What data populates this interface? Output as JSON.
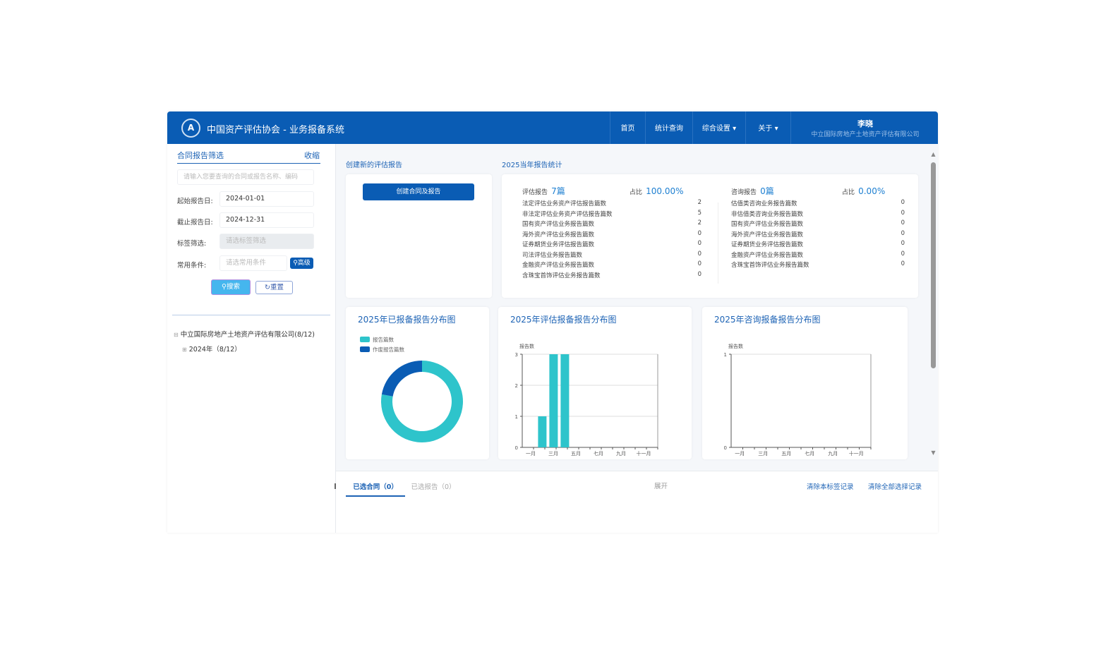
{
  "header": {
    "title": "中国资产评估协会 - 业务报备系统",
    "nav": [
      "首页",
      "统计查询",
      "综合设置 ▾",
      "关于 ▾"
    ],
    "user_name": "李晓",
    "user_company": "中立国际房地产土地资产评估有限公司"
  },
  "filter": {
    "title": "合同报告筛选",
    "collapse": "收缩",
    "search_placeholder": "请输入您要查询的合同或报告名称、编码",
    "start_label": "起始报告日:",
    "start_value": "2024-01-01",
    "end_label": "截止报告日:",
    "end_value": "2024-12-31",
    "tag_label": "标签筛选:",
    "tag_placeholder": "请选标签筛选",
    "cond_label": "常用条件:",
    "cond_placeholder": "请选常用条件",
    "advanced": "高级",
    "search": "搜索",
    "reset": "重置"
  },
  "tree": {
    "root": "中立国际房地产土地资产评估有限公司(8/12)",
    "child": "2024年（8/12）"
  },
  "create": {
    "title": "创建新的评估报告",
    "button": "创建合同及报告"
  },
  "stats": {
    "title": "2025当年报告统计",
    "eval": {
      "label": "评估报告",
      "count": "7篇",
      "ratio_label": "占比",
      "ratio": "100.00%",
      "rows": [
        [
          "法定评估业务资产评估报告篇数",
          "2"
        ],
        [
          "非法定评估业务资产评估报告篇数",
          "5"
        ],
        [
          "国有资产评估业务报告篇数",
          "2"
        ],
        [
          "海外资产评估业务报告篇数",
          "0"
        ],
        [
          "证券期货业务评估报告篇数",
          "0"
        ],
        [
          "司法评估业务报告篇数",
          "0"
        ],
        [
          "金融资产评估业务报告篇数",
          "0"
        ],
        [
          "含珠宝首饰评估业务报告篇数",
          "0"
        ]
      ]
    },
    "consult": {
      "label": "咨询报告",
      "count": "0篇",
      "ratio_label": "占比",
      "ratio": "0.00%",
      "rows": [
        [
          "估值类咨询业务报告篇数",
          "0"
        ],
        [
          "非估值类咨询业务报告篇数",
          "0"
        ],
        [
          "国有资产评估业务报告篇数",
          "0"
        ],
        [
          "海外资产评估业务报告篇数",
          "0"
        ],
        [
          "证券期货业务评估报告篇数",
          "0"
        ],
        [
          "金融资产评估业务报告篇数",
          "0"
        ],
        [
          "含珠宝首饰评估业务报告篇数",
          "0"
        ]
      ]
    }
  },
  "chart_data": [
    {
      "type": "pie",
      "title": "2025年已报备报告分布图",
      "legend": [
        "报告篇数",
        "作废报告篇数"
      ],
      "values": [
        7,
        2
      ],
      "colors": [
        "#2ec4cb",
        "#0a5cb4"
      ],
      "donut": true,
      "legend_position": "top-left"
    },
    {
      "type": "bar",
      "title": "2025年评估报备报告分布图",
      "ylabel": "报告数",
      "categories": [
        "一月",
        "二月",
        "三月",
        "四月",
        "五月",
        "六月",
        "七月",
        "八月",
        "九月",
        "十月",
        "十一月",
        "十二月"
      ],
      "tick_labels": [
        "一月",
        "三月",
        "五月",
        "七月",
        "九月",
        "十一月"
      ],
      "values": [
        0,
        1,
        3,
        3,
        0,
        0,
        0,
        0,
        0,
        0,
        0,
        0
      ],
      "ylim": [
        0,
        3
      ],
      "yticks": [
        "0",
        "1",
        "2",
        "3"
      ],
      "color": "#2ec4cb",
      "grid": true
    },
    {
      "type": "bar",
      "title": "2025年咨询报备报告分布图",
      "ylabel": "报告数",
      "categories": [
        "一月",
        "二月",
        "三月",
        "四月",
        "五月",
        "六月",
        "七月",
        "八月",
        "九月",
        "十月",
        "十一月",
        "十二月"
      ],
      "tick_labels": [
        "一月",
        "三月",
        "五月",
        "七月",
        "九月",
        "十一月"
      ],
      "values": [
        0,
        0,
        0,
        0,
        0,
        0,
        0,
        0,
        0,
        0,
        0,
        0
      ],
      "ylim": [
        0,
        1
      ],
      "yticks": [
        "0",
        "1"
      ],
      "color": "#2ec4cb",
      "grid": true
    }
  ],
  "bottom": {
    "tabs": [
      "已选合同（0）",
      "已选报告（0）"
    ],
    "expand": "展开",
    "clear_tab": "清除本标签记录",
    "clear_all": "清除全部选择记录"
  }
}
